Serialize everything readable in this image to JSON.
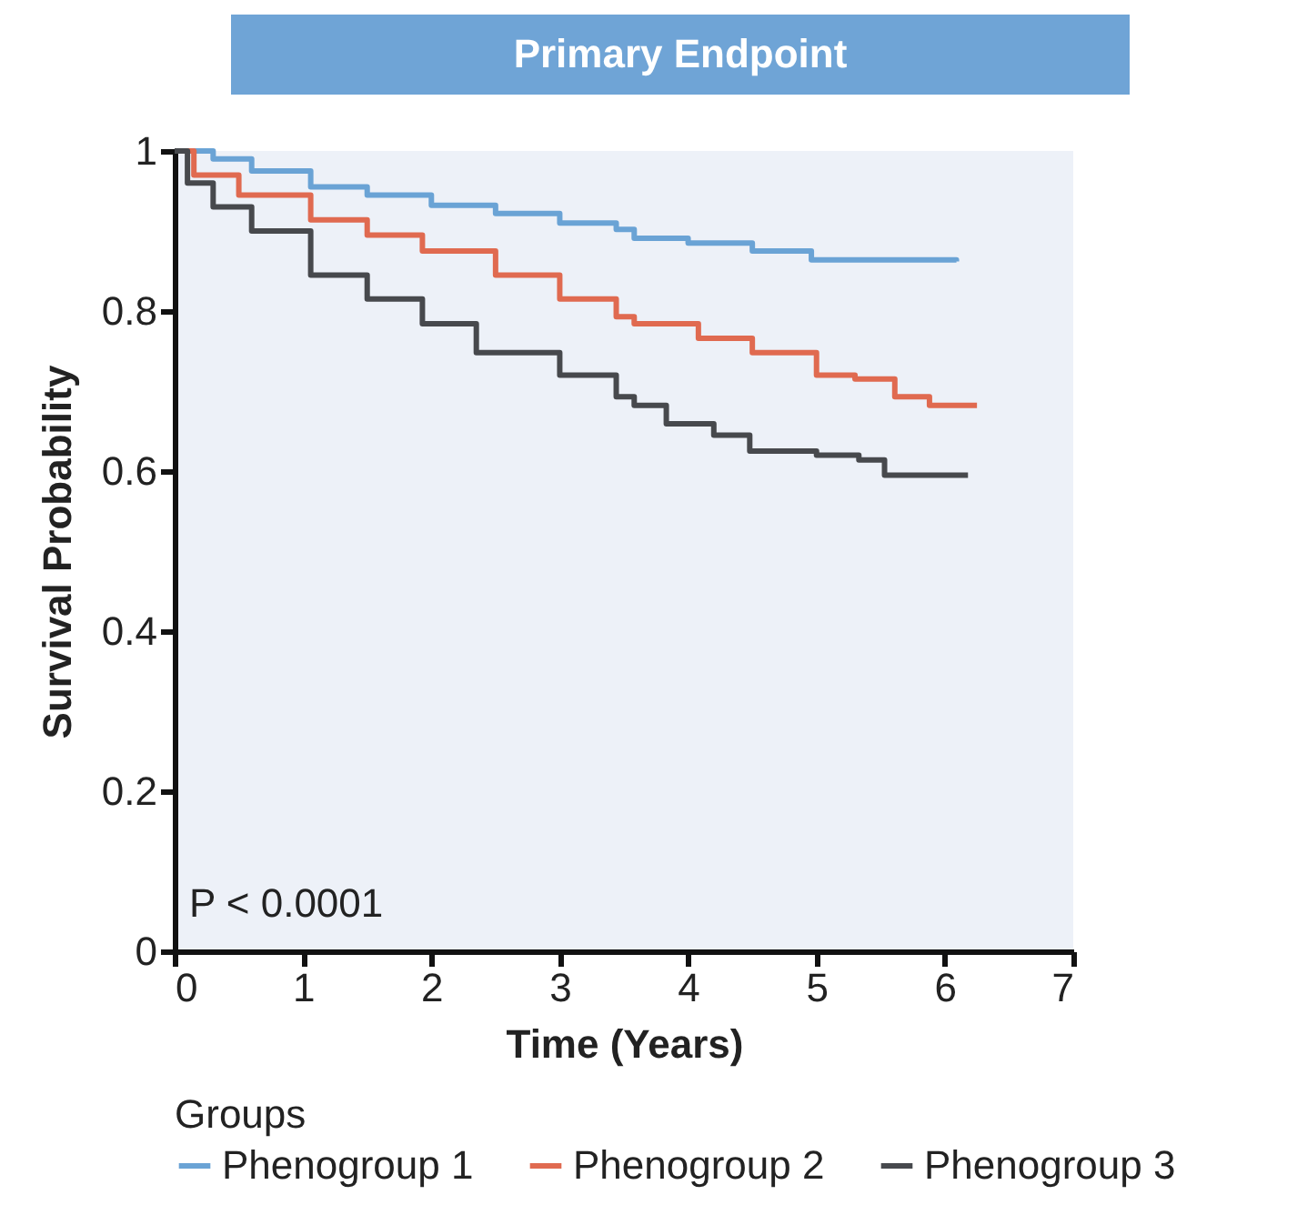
{
  "chart_data": {
    "type": "step",
    "title": "Primary Endpoint",
    "xlabel": "Time (Years)",
    "ylabel": "Survival Probability",
    "legend_title": "Groups",
    "legend": "bottom",
    "grid": false,
    "marker": "none",
    "annotations": [
      "P < 0.0001"
    ],
    "xlim": [
      0,
      7
    ],
    "xticks": [
      0,
      1,
      2,
      3,
      4,
      5,
      6,
      7
    ],
    "ylim": [
      0,
      1
    ],
    "yticks": [
      0,
      0.2,
      0.4,
      0.6,
      0.8,
      1
    ],
    "series": [
      {
        "name": "Phenogroup 1",
        "color": "#6aa3d5",
        "x": [
          0,
          0.3,
          0.6,
          1.06,
          1.5,
          2.0,
          2.5,
          3.0,
          3.44,
          3.58,
          4.0,
          4.5,
          4.96,
          5.5,
          6.09
        ],
        "values": [
          1,
          0.99,
          0.975,
          0.955,
          0.945,
          0.932,
          0.922,
          0.91,
          0.902,
          0.891,
          0.885,
          0.875,
          0.864,
          0.864,
          0.862
        ]
      },
      {
        "name": "Phenogroup 2",
        "color": "#e06a50",
        "x": [
          0,
          0.15,
          0.5,
          1.06,
          1.5,
          1.93,
          2.5,
          3.0,
          3.44,
          3.58,
          4.08,
          4.5,
          5.0,
          5.3,
          5.61,
          5.88,
          6.25
        ],
        "values": [
          1,
          0.97,
          0.945,
          0.914,
          0.895,
          0.875,
          0.845,
          0.815,
          0.793,
          0.784,
          0.766,
          0.748,
          0.72,
          0.715,
          0.693,
          0.682,
          0.682
        ]
      },
      {
        "name": "Phenogroup 3",
        "color": "#47494d",
        "x": [
          0,
          0.1,
          0.3,
          0.6,
          1.06,
          1.5,
          1.93,
          2.35,
          3.0,
          3.44,
          3.58,
          3.83,
          4.2,
          4.48,
          5.0,
          5.33,
          5.53,
          6.18
        ],
        "values": [
          1,
          0.96,
          0.93,
          0.9,
          0.845,
          0.815,
          0.784,
          0.748,
          0.72,
          0.693,
          0.682,
          0.659,
          0.645,
          0.625,
          0.62,
          0.614,
          0.595,
          0.595
        ]
      }
    ]
  }
}
